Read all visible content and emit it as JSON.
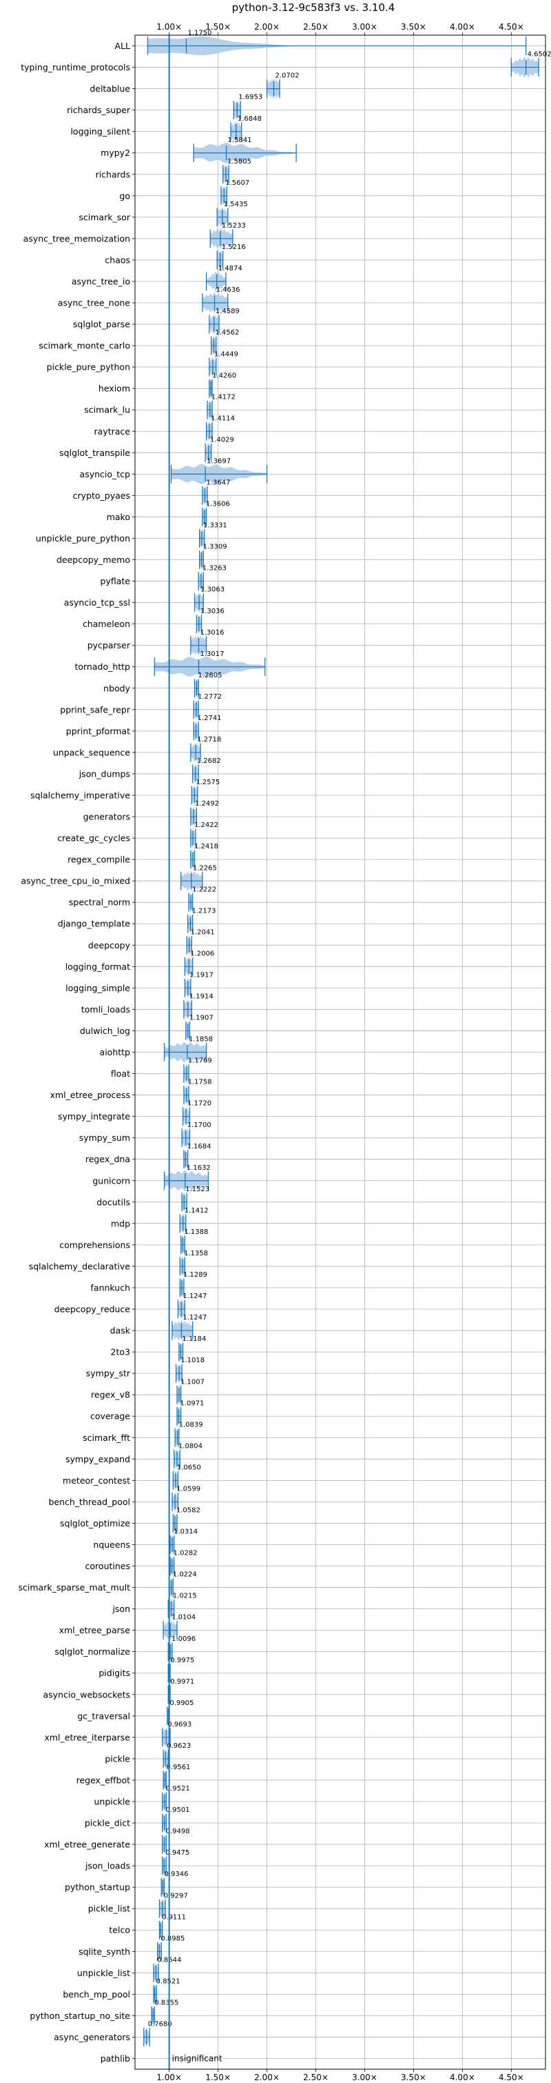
{
  "chart_data": {
    "type": "violin",
    "title": "python-3.12-9c583f3 vs. 3.10.4",
    "xlabel": "",
    "ylabel": "",
    "xlim": [
      0.65,
      4.85
    ],
    "xticks": [
      1.0,
      1.5,
      2.0,
      2.5,
      3.0,
      3.5,
      4.0,
      4.5
    ],
    "xtick_labels": [
      "1.00×",
      "1.50×",
      "2.00×",
      "2.50×",
      "3.00×",
      "3.50×",
      "4.00×",
      "4.50×"
    ],
    "reference_line": 1.0,
    "grid": true,
    "colors": {
      "violin": "#a8c8e8",
      "line": "#1f77b4",
      "grid": "#b0b0b0"
    },
    "benchmarks": [
      {
        "name": "ALL",
        "value": "1.1750",
        "center": 1.175,
        "min": 0.78,
        "max": 4.65,
        "spread": 0.45
      },
      {
        "name": "typing_runtime_protocols",
        "value": "4.6502",
        "center": 4.65,
        "min": 4.5,
        "max": 4.78,
        "spread": 0.12
      },
      {
        "name": "deltablue",
        "value": "2.0702",
        "center": 2.07,
        "min": 2.0,
        "max": 2.13,
        "spread": 0.07
      },
      {
        "name": "richards_super",
        "value": "1.6953",
        "center": 1.695,
        "min": 1.66,
        "max": 1.73,
        "spread": 0.04
      },
      {
        "name": "logging_silent",
        "value": "1.6848",
        "center": 1.685,
        "min": 1.63,
        "max": 1.74,
        "spread": 0.05
      },
      {
        "name": "mypy2",
        "value": "1.5841",
        "center": 1.584,
        "min": 1.25,
        "max": 2.3,
        "spread": 0.3
      },
      {
        "name": "richards",
        "value": "1.5805",
        "center": 1.58,
        "min": 1.55,
        "max": 1.61,
        "spread": 0.03
      },
      {
        "name": "go",
        "value": "1.5607",
        "center": 1.561,
        "min": 1.53,
        "max": 1.59,
        "spread": 0.03
      },
      {
        "name": "scimark_sor",
        "value": "1.5435",
        "center": 1.543,
        "min": 1.49,
        "max": 1.6,
        "spread": 0.05
      },
      {
        "name": "async_tree_memoization",
        "value": "1.5233",
        "center": 1.523,
        "min": 1.42,
        "max": 1.65,
        "spread": 0.1
      },
      {
        "name": "chaos",
        "value": "1.5216",
        "center": 1.522,
        "min": 1.49,
        "max": 1.55,
        "spread": 0.03
      },
      {
        "name": "async_tree_io",
        "value": "1.4874",
        "center": 1.487,
        "min": 1.38,
        "max": 1.58,
        "spread": 0.06
      },
      {
        "name": "async_tree_none",
        "value": "1.4636",
        "center": 1.464,
        "min": 1.34,
        "max": 1.6,
        "spread": 0.12
      },
      {
        "name": "sqlglot_parse",
        "value": "1.4589",
        "center": 1.459,
        "min": 1.41,
        "max": 1.51,
        "spread": 0.04
      },
      {
        "name": "scimark_monte_carlo",
        "value": "1.4562",
        "center": 1.456,
        "min": 1.43,
        "max": 1.48,
        "spread": 0.02
      },
      {
        "name": "pickle_pure_python",
        "value": "1.4449",
        "center": 1.445,
        "min": 1.41,
        "max": 1.48,
        "spread": 0.03
      },
      {
        "name": "hexiom",
        "value": "1.4260",
        "center": 1.426,
        "min": 1.41,
        "max": 1.44,
        "spread": 0.02
      },
      {
        "name": "scimark_lu",
        "value": "1.4172",
        "center": 1.417,
        "min": 1.39,
        "max": 1.44,
        "spread": 0.02
      },
      {
        "name": "raytrace",
        "value": "1.4114",
        "center": 1.411,
        "min": 1.38,
        "max": 1.44,
        "spread": 0.03
      },
      {
        "name": "sqlglot_transpile",
        "value": "1.4029",
        "center": 1.403,
        "min": 1.37,
        "max": 1.43,
        "spread": 0.03
      },
      {
        "name": "asyncio_tcp",
        "value": "1.3697",
        "center": 1.37,
        "min": 1.02,
        "max": 2.0,
        "spread": 0.3
      },
      {
        "name": "crypto_pyaes",
        "value": "1.3647",
        "center": 1.365,
        "min": 1.34,
        "max": 1.39,
        "spread": 0.02
      },
      {
        "name": "mako",
        "value": "1.3606",
        "center": 1.361,
        "min": 1.34,
        "max": 1.38,
        "spread": 0.02
      },
      {
        "name": "unpickle_pure_python",
        "value": "1.3331",
        "center": 1.333,
        "min": 1.31,
        "max": 1.36,
        "spread": 0.02
      },
      {
        "name": "deepcopy_memo",
        "value": "1.3309",
        "center": 1.331,
        "min": 1.31,
        "max": 1.35,
        "spread": 0.02
      },
      {
        "name": "pyflate",
        "value": "1.3263",
        "center": 1.326,
        "min": 1.3,
        "max": 1.35,
        "spread": 0.02
      },
      {
        "name": "asyncio_tcp_ssl",
        "value": "1.3063",
        "center": 1.306,
        "min": 1.26,
        "max": 1.35,
        "spread": 0.04
      },
      {
        "name": "chameleon",
        "value": "1.3036",
        "center": 1.304,
        "min": 1.28,
        "max": 1.33,
        "spread": 0.02
      },
      {
        "name": "pycparser",
        "value": "1.3016",
        "center": 1.302,
        "min": 1.22,
        "max": 1.38,
        "spread": 0.1
      },
      {
        "name": "tornado_http",
        "value": "1.3017",
        "center": 1.302,
        "min": 0.85,
        "max": 1.98,
        "spread": 0.35
      },
      {
        "name": "nbody",
        "value": "1.2805",
        "center": 1.281,
        "min": 1.26,
        "max": 1.3,
        "spread": 0.02
      },
      {
        "name": "pprint_safe_repr",
        "value": "1.2772",
        "center": 1.277,
        "min": 1.25,
        "max": 1.3,
        "spread": 0.02
      },
      {
        "name": "pprint_pformat",
        "value": "1.2741",
        "center": 1.274,
        "min": 1.25,
        "max": 1.3,
        "spread": 0.02
      },
      {
        "name": "unpack_sequence",
        "value": "1.2718",
        "center": 1.272,
        "min": 1.22,
        "max": 1.32,
        "spread": 0.04
      },
      {
        "name": "json_dumps",
        "value": "1.2682",
        "center": 1.268,
        "min": 1.24,
        "max": 1.3,
        "spread": 0.02
      },
      {
        "name": "sqlalchemy_imperative",
        "value": "1.2575",
        "center": 1.258,
        "min": 1.23,
        "max": 1.29,
        "spread": 0.03
      },
      {
        "name": "generators",
        "value": "1.2492",
        "center": 1.249,
        "min": 1.22,
        "max": 1.28,
        "spread": 0.03
      },
      {
        "name": "create_gc_cycles",
        "value": "1.2422",
        "center": 1.242,
        "min": 1.22,
        "max": 1.27,
        "spread": 0.02
      },
      {
        "name": "regex_compile",
        "value": "1.2418",
        "center": 1.242,
        "min": 1.22,
        "max": 1.26,
        "spread": 0.02
      },
      {
        "name": "async_tree_cpu_io_mixed",
        "value": "1.2265",
        "center": 1.227,
        "min": 1.12,
        "max": 1.34,
        "spread": 0.1
      },
      {
        "name": "spectral_norm",
        "value": "1.2222",
        "center": 1.222,
        "min": 1.2,
        "max": 1.24,
        "spread": 0.02
      },
      {
        "name": "django_template",
        "value": "1.2173",
        "center": 1.217,
        "min": 1.19,
        "max": 1.24,
        "spread": 0.02
      },
      {
        "name": "deepcopy",
        "value": "1.2041",
        "center": 1.204,
        "min": 1.18,
        "max": 1.23,
        "spread": 0.02
      },
      {
        "name": "logging_format",
        "value": "1.2006",
        "center": 1.201,
        "min": 1.16,
        "max": 1.24,
        "spread": 0.04
      },
      {
        "name": "logging_simple",
        "value": "1.1917",
        "center": 1.192,
        "min": 1.16,
        "max": 1.22,
        "spread": 0.03
      },
      {
        "name": "tomli_loads",
        "value": "1.1914",
        "center": 1.191,
        "min": 1.15,
        "max": 1.23,
        "spread": 0.04
      },
      {
        "name": "dulwich_log",
        "value": "1.1907",
        "center": 1.191,
        "min": 1.17,
        "max": 1.21,
        "spread": 0.02
      },
      {
        "name": "aiohttp",
        "value": "1.1858",
        "center": 1.186,
        "min": 0.95,
        "max": 1.38,
        "spread": 0.2
      },
      {
        "name": "float",
        "value": "1.1769",
        "center": 1.177,
        "min": 1.15,
        "max": 1.2,
        "spread": 0.02
      },
      {
        "name": "xml_etree_process",
        "value": "1.1758",
        "center": 1.176,
        "min": 1.15,
        "max": 1.2,
        "spread": 0.02
      },
      {
        "name": "sympy_integrate",
        "value": "1.1720",
        "center": 1.172,
        "min": 1.14,
        "max": 1.21,
        "spread": 0.03
      },
      {
        "name": "sympy_sum",
        "value": "1.1700",
        "center": 1.17,
        "min": 1.13,
        "max": 1.21,
        "spread": 0.04
      },
      {
        "name": "regex_dna",
        "value": "1.1684",
        "center": 1.168,
        "min": 1.15,
        "max": 1.19,
        "spread": 0.02
      },
      {
        "name": "gunicorn",
        "value": "1.1632",
        "center": 1.163,
        "min": 0.95,
        "max": 1.4,
        "spread": 0.2
      },
      {
        "name": "docutils",
        "value": "1.1523",
        "center": 1.152,
        "min": 1.13,
        "max": 1.18,
        "spread": 0.02
      },
      {
        "name": "mdp",
        "value": "1.1412",
        "center": 1.141,
        "min": 1.11,
        "max": 1.17,
        "spread": 0.03
      },
      {
        "name": "comprehensions",
        "value": "1.1388",
        "center": 1.139,
        "min": 1.12,
        "max": 1.16,
        "spread": 0.02
      },
      {
        "name": "sqlalchemy_declarative",
        "value": "1.1358",
        "center": 1.136,
        "min": 1.11,
        "max": 1.16,
        "spread": 0.03
      },
      {
        "name": "fannkuch",
        "value": "1.1289",
        "center": 1.129,
        "min": 1.11,
        "max": 1.15,
        "spread": 0.02
      },
      {
        "name": "deepcopy_reduce",
        "value": "1.1247",
        "center": 1.125,
        "min": 1.09,
        "max": 1.16,
        "spread": 0.03
      },
      {
        "name": "dask",
        "value": "1.1247",
        "center": 1.125,
        "min": 1.03,
        "max": 1.24,
        "spread": 0.1
      },
      {
        "name": "2to3",
        "value": "1.1184",
        "center": 1.118,
        "min": 1.1,
        "max": 1.14,
        "spread": 0.02
      },
      {
        "name": "sympy_str",
        "value": "1.1018",
        "center": 1.102,
        "min": 1.07,
        "max": 1.13,
        "spread": 0.03
      },
      {
        "name": "regex_v8",
        "value": "1.1007",
        "center": 1.101,
        "min": 1.08,
        "max": 1.12,
        "spread": 0.02
      },
      {
        "name": "coverage",
        "value": "1.0971",
        "center": 1.097,
        "min": 1.08,
        "max": 1.12,
        "spread": 0.02
      },
      {
        "name": "scimark_fft",
        "value": "1.0839",
        "center": 1.084,
        "min": 1.06,
        "max": 1.1,
        "spread": 0.02
      },
      {
        "name": "sympy_expand",
        "value": "1.0804",
        "center": 1.08,
        "min": 1.05,
        "max": 1.11,
        "spread": 0.03
      },
      {
        "name": "meteor_contest",
        "value": "1.0650",
        "center": 1.065,
        "min": 1.04,
        "max": 1.09,
        "spread": 0.02
      },
      {
        "name": "bench_thread_pool",
        "value": "1.0599",
        "center": 1.06,
        "min": 1.03,
        "max": 1.09,
        "spread": 0.02
      },
      {
        "name": "sqlglot_optimize",
        "value": "1.0582",
        "center": 1.058,
        "min": 1.04,
        "max": 1.08,
        "spread": 0.02
      },
      {
        "name": "nqueens",
        "value": "1.0314",
        "center": 1.031,
        "min": 1.01,
        "max": 1.05,
        "spread": 0.02
      },
      {
        "name": "coroutines",
        "value": "1.0282",
        "center": 1.028,
        "min": 1.01,
        "max": 1.05,
        "spread": 0.02
      },
      {
        "name": "scimark_sparse_mat_mult",
        "value": "1.0224",
        "center": 1.022,
        "min": 1.0,
        "max": 1.04,
        "spread": 0.02
      },
      {
        "name": "json",
        "value": "1.0215",
        "center": 1.022,
        "min": 0.99,
        "max": 1.05,
        "spread": 0.03
      },
      {
        "name": "xml_etree_parse",
        "value": "1.0104",
        "center": 1.01,
        "min": 0.94,
        "max": 1.08,
        "spread": 0.06
      },
      {
        "name": "sqlglot_normalize",
        "value": "1.0096",
        "center": 1.01,
        "min": 0.99,
        "max": 1.03,
        "spread": 0.02
      },
      {
        "name": "pidigits",
        "value": "0.9975",
        "center": 0.998,
        "min": 0.99,
        "max": 1.01,
        "spread": 0.01
      },
      {
        "name": "asyncio_websockets",
        "value": "0.9971",
        "center": 0.997,
        "min": 0.99,
        "max": 1.01,
        "spread": 0.01
      },
      {
        "name": "gc_traversal",
        "value": "0.9905",
        "center": 0.991,
        "min": 0.98,
        "max": 1.0,
        "spread": 0.01
      },
      {
        "name": "xml_etree_iterparse",
        "value": "0.9693",
        "center": 0.969,
        "min": 0.93,
        "max": 1.01,
        "spread": 0.04
      },
      {
        "name": "pickle",
        "value": "0.9623",
        "center": 0.962,
        "min": 0.94,
        "max": 0.99,
        "spread": 0.02
      },
      {
        "name": "regex_effbot",
        "value": "0.9561",
        "center": 0.956,
        "min": 0.94,
        "max": 0.97,
        "spread": 0.02
      },
      {
        "name": "unpickle",
        "value": "0.9521",
        "center": 0.952,
        "min": 0.93,
        "max": 0.97,
        "spread": 0.02
      },
      {
        "name": "pickle_dict",
        "value": "0.9501",
        "center": 0.95,
        "min": 0.93,
        "max": 0.97,
        "spread": 0.02
      },
      {
        "name": "xml_etree_generate",
        "value": "0.9498",
        "center": 0.95,
        "min": 0.93,
        "max": 0.97,
        "spread": 0.02
      },
      {
        "name": "json_loads",
        "value": "0.9475",
        "center": 0.948,
        "min": 0.93,
        "max": 0.97,
        "spread": 0.02
      },
      {
        "name": "python_startup",
        "value": "0.9346",
        "center": 0.935,
        "min": 0.92,
        "max": 0.95,
        "spread": 0.02
      },
      {
        "name": "pickle_list",
        "value": "0.9297",
        "center": 0.93,
        "min": 0.9,
        "max": 0.96,
        "spread": 0.03
      },
      {
        "name": "telco",
        "value": "0.9111",
        "center": 0.911,
        "min": 0.9,
        "max": 0.93,
        "spread": 0.01
      },
      {
        "name": "sqlite_synth",
        "value": "0.8985",
        "center": 0.899,
        "min": 0.88,
        "max": 0.92,
        "spread": 0.02
      },
      {
        "name": "unpickle_list",
        "value": "0.8644",
        "center": 0.864,
        "min": 0.84,
        "max": 0.89,
        "spread": 0.02
      },
      {
        "name": "bench_mp_pool",
        "value": "0.8521",
        "center": 0.852,
        "min": 0.84,
        "max": 0.87,
        "spread": 0.01
      },
      {
        "name": "python_startup_no_site",
        "value": "0.8355",
        "center": 0.836,
        "min": 0.82,
        "max": 0.85,
        "spread": 0.01
      },
      {
        "name": "async_generators",
        "value": "0.7680",
        "center": 0.768,
        "min": 0.74,
        "max": 0.8,
        "spread": 0.02
      },
      {
        "name": "pathlib",
        "value": "insignificant",
        "center": null,
        "min": null,
        "max": null,
        "spread": 0
      }
    ]
  }
}
